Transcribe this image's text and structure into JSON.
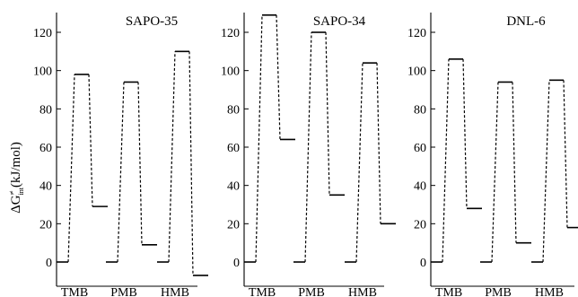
{
  "ylabel": "ΔG",
  "ylabel_sup": "≠",
  "ylabel_sub": "int",
  "ylabel_unit": "(kJ/mol)",
  "chart_data": [
    {
      "type": "line",
      "title": "SAPO-35",
      "categories": [
        "TMB",
        "PMB",
        "HMB"
      ],
      "yticks": [
        0,
        20,
        40,
        60,
        80,
        100,
        120
      ],
      "ylim": [
        -8,
        130
      ],
      "series": [
        {
          "name": "TMB",
          "values": [
            0,
            98,
            29
          ]
        },
        {
          "name": "PMB",
          "values": [
            0,
            94,
            9
          ]
        },
        {
          "name": "HMB",
          "values": [
            0,
            110,
            -7
          ]
        }
      ]
    },
    {
      "type": "line",
      "title": "SAPO-34",
      "categories": [
        "TMB",
        "PMB",
        "HMB"
      ],
      "yticks": [
        0,
        20,
        40,
        60,
        80,
        100,
        120
      ],
      "ylim": [
        -8,
        130
      ],
      "series": [
        {
          "name": "TMB",
          "values": [
            0,
            129,
            64
          ]
        },
        {
          "name": "PMB",
          "values": [
            0,
            120,
            35
          ]
        },
        {
          "name": "HMB",
          "values": [
            0,
            104,
            20
          ]
        }
      ]
    },
    {
      "type": "line",
      "title": "DNL-6",
      "categories": [
        "TMB",
        "PMB",
        "HMB"
      ],
      "yticks": [
        0,
        20,
        40,
        60,
        80,
        100,
        120
      ],
      "ylim": [
        -8,
        130
      ],
      "series": [
        {
          "name": "TMB",
          "values": [
            0,
            106,
            28
          ]
        },
        {
          "name": "PMB",
          "values": [
            0,
            94,
            10
          ]
        },
        {
          "name": "HMB",
          "values": [
            0,
            95,
            18
          ]
        }
      ]
    }
  ]
}
